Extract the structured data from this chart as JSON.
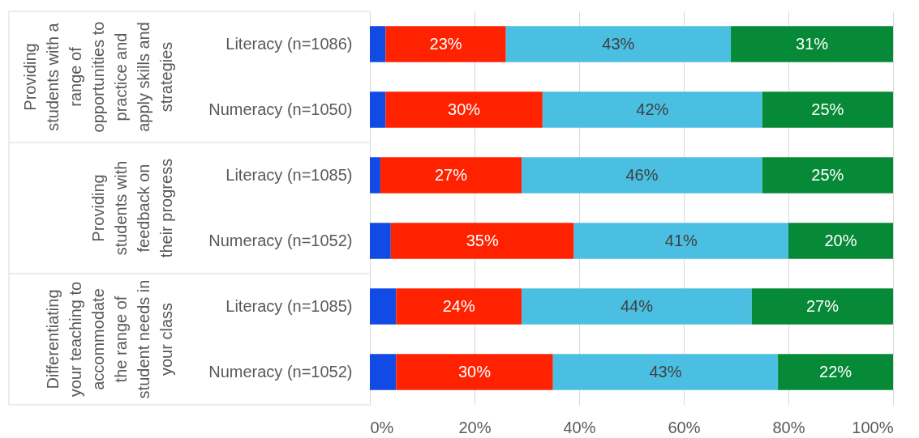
{
  "chart_data": [
    {
      "type": "bar",
      "orientation": "horizontal",
      "stacked": true,
      "title": "Providing students with a range of opportunities to practice and apply skills and strategies",
      "categories": [
        "Literacy (n=1086)",
        "Numeracy (n=1050)"
      ],
      "series": [
        {
          "color": "#124ae6",
          "values": [
            3,
            3
          ]
        },
        {
          "color": "#fe2200",
          "values": [
            23,
            30
          ],
          "value_labels": [
            "23%",
            "30%"
          ]
        },
        {
          "color": "#4bbfe2",
          "values": [
            43,
            42
          ],
          "value_labels": [
            "43%",
            "42%"
          ]
        },
        {
          "color": "#068a37",
          "values": [
            31,
            25
          ],
          "value_labels": [
            "31%",
            "25%"
          ]
        }
      ],
      "xlim": [
        0,
        100
      ],
      "xticks": [
        0,
        20,
        40,
        60,
        80,
        100
      ],
      "grid": "x",
      "tick_labels": "y"
    },
    {
      "type": "bar",
      "orientation": "horizontal",
      "stacked": true,
      "title": "Providing students with feedback on their progress",
      "categories": [
        "Literacy (n=1085)",
        "Numeracy (n=1052)"
      ],
      "series": [
        {
          "color": "#124ae6",
          "values": [
            2,
            4
          ]
        },
        {
          "color": "#fe2200",
          "values": [
            27,
            35
          ],
          "value_labels": [
            "27%",
            "35%"
          ]
        },
        {
          "color": "#4bbfe2",
          "values": [
            46,
            41
          ],
          "value_labels": [
            "46%",
            "41%"
          ]
        },
        {
          "color": "#068a37",
          "values": [
            25,
            20
          ],
          "value_labels": [
            "25%",
            "20%"
          ]
        }
      ],
      "xlim": [
        0,
        100
      ],
      "xticks": [
        0,
        20,
        40,
        60,
        80,
        100
      ],
      "grid": "x",
      "tick_labels": "y"
    },
    {
      "type": "bar",
      "orientation": "horizontal",
      "stacked": true,
      "title": "Differentiating your teaching to accommodate the range of student needs in your class",
      "categories": [
        "Literacy (n=1085)",
        "Numeracy (n=1052)"
      ],
      "series": [
        {
          "color": "#124ae6",
          "values": [
            5,
            5
          ]
        },
        {
          "color": "#fe2200",
          "values": [
            24,
            30
          ],
          "value_labels": [
            "24%",
            "30%"
          ]
        },
        {
          "color": "#4bbfe2",
          "values": [
            44,
            43
          ],
          "value_labels": [
            "44%",
            "43%"
          ]
        },
        {
          "color": "#068a37",
          "values": [
            27,
            22
          ],
          "value_labels": [
            "27%",
            "22%"
          ]
        }
      ],
      "xlim": [
        0,
        100
      ],
      "xticks": [
        {
          "value": 0,
          "label": "0%"
        },
        {
          "value": 20,
          "label": "20%"
        },
        {
          "value": 40,
          "label": "40%"
        },
        {
          "value": 60,
          "label": "60%"
        },
        {
          "value": 80,
          "label": "80%"
        },
        {
          "value": 100,
          "label": "100%"
        }
      ],
      "grid": "x"
    }
  ]
}
